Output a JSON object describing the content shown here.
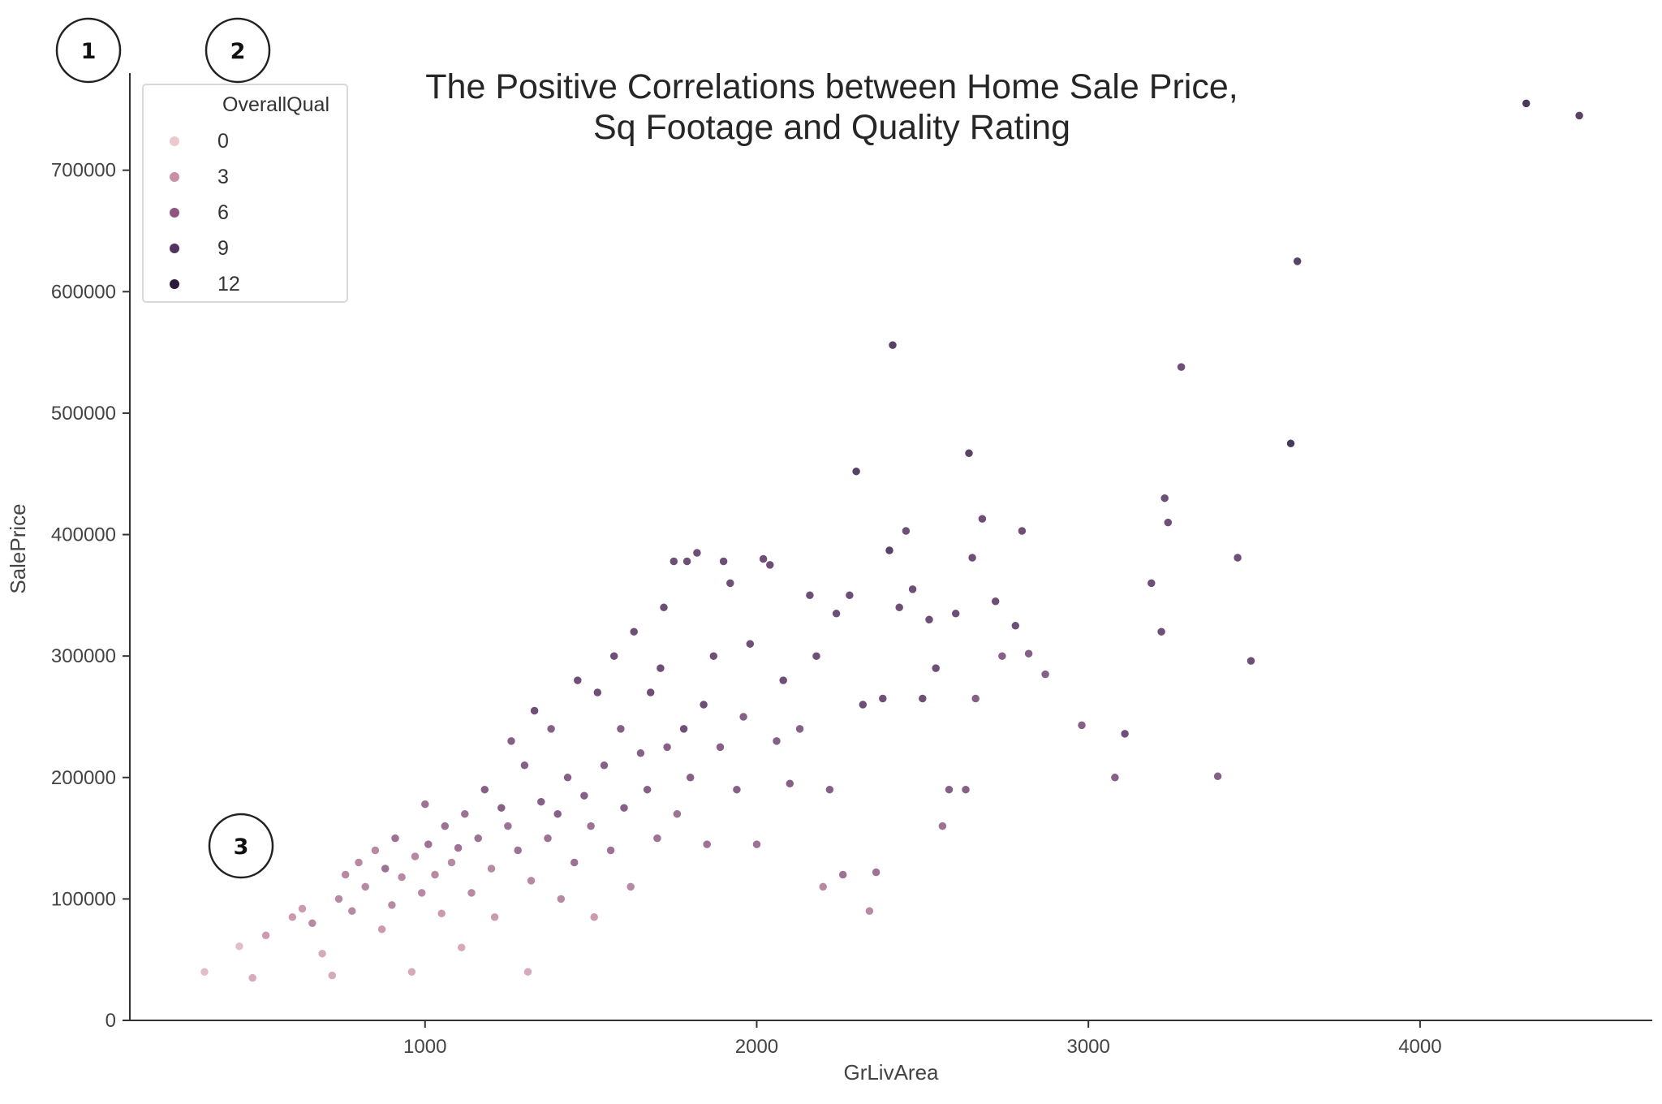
{
  "callouts": [
    "1",
    "2",
    "3"
  ],
  "chart_data": {
    "type": "scatter",
    "title": [
      "The Positive Correlations between Home Sale Price,",
      "Sq Footage and Quality Rating"
    ],
    "xlabel": "GrLivArea",
    "ylabel": "SalePrice",
    "xlim": [
      110,
      4700
    ],
    "ylim": [
      0,
      780000
    ],
    "xticks": [
      1000,
      2000,
      3000,
      4000
    ],
    "yticks": [
      0,
      100000,
      200000,
      300000,
      400000,
      500000,
      600000,
      700000
    ],
    "grid": false,
    "hue": "OverallQual",
    "legend": {
      "title": "OverallQual",
      "placement": "top-left",
      "entries": [
        {
          "label": "0",
          "color": "#ebc9cf"
        },
        {
          "label": "3",
          "color": "#c98fa6"
        },
        {
          "label": "6",
          "color": "#8f5480"
        },
        {
          "label": "9",
          "color": "#54325f"
        },
        {
          "label": "12",
          "color": "#2a1a3b"
        }
      ]
    },
    "colors": {
      "1": "#e8cbd0",
      "2": "#dfb7c2",
      "3": "#d2a1b4",
      "4": "#c68fa6",
      "5": "#b07c98",
      "6": "#946388",
      "7": "#7a4f7a",
      "8": "#5e3c68",
      "9": "#472d58",
      "10": "#33224a"
    },
    "points": [
      [
        335,
        40000,
        2
      ],
      [
        440,
        61000,
        2
      ],
      [
        480,
        35000,
        3
      ],
      [
        520,
        70000,
        4
      ],
      [
        600,
        85000,
        4
      ],
      [
        630,
        92000,
        4
      ],
      [
        660,
        80000,
        5
      ],
      [
        690,
        55000,
        3
      ],
      [
        720,
        37000,
        3
      ],
      [
        740,
        100000,
        5
      ],
      [
        760,
        120000,
        5
      ],
      [
        780,
        90000,
        5
      ],
      [
        800,
        130000,
        5
      ],
      [
        820,
        110000,
        5
      ],
      [
        850,
        140000,
        5
      ],
      [
        870,
        75000,
        4
      ],
      [
        880,
        125000,
        6
      ],
      [
        900,
        95000,
        5
      ],
      [
        910,
        150000,
        6
      ],
      [
        930,
        118000,
        5
      ],
      [
        960,
        40000,
        3
      ],
      [
        970,
        135000,
        5
      ],
      [
        990,
        105000,
        5
      ],
      [
        1000,
        178000,
        6
      ],
      [
        1010,
        145000,
        6
      ],
      [
        1030,
        120000,
        5
      ],
      [
        1050,
        88000,
        4
      ],
      [
        1060,
        160000,
        6
      ],
      [
        1080,
        130000,
        5
      ],
      [
        1100,
        142000,
        6
      ],
      [
        1110,
        60000,
        3
      ],
      [
        1120,
        170000,
        6
      ],
      [
        1140,
        105000,
        5
      ],
      [
        1160,
        150000,
        6
      ],
      [
        1180,
        190000,
        7
      ],
      [
        1200,
        125000,
        5
      ],
      [
        1210,
        85000,
        4
      ],
      [
        1230,
        175000,
        7
      ],
      [
        1250,
        160000,
        6
      ],
      [
        1260,
        230000,
        7
      ],
      [
        1280,
        140000,
        6
      ],
      [
        1300,
        210000,
        7
      ],
      [
        1310,
        40000,
        3
      ],
      [
        1320,
        115000,
        5
      ],
      [
        1330,
        255000,
        8
      ],
      [
        1350,
        180000,
        7
      ],
      [
        1370,
        150000,
        6
      ],
      [
        1380,
        240000,
        7
      ],
      [
        1400,
        170000,
        7
      ],
      [
        1410,
        100000,
        5
      ],
      [
        1430,
        200000,
        7
      ],
      [
        1450,
        130000,
        6
      ],
      [
        1460,
        280000,
        8
      ],
      [
        1480,
        185000,
        7
      ],
      [
        1500,
        160000,
        6
      ],
      [
        1510,
        85000,
        4
      ],
      [
        1520,
        270000,
        8
      ],
      [
        1540,
        210000,
        7
      ],
      [
        1560,
        140000,
        6
      ],
      [
        1570,
        300000,
        8
      ],
      [
        1590,
        240000,
        7
      ],
      [
        1600,
        175000,
        7
      ],
      [
        1620,
        110000,
        5
      ],
      [
        1630,
        320000,
        8
      ],
      [
        1650,
        220000,
        7
      ],
      [
        1670,
        190000,
        7
      ],
      [
        1680,
        270000,
        8
      ],
      [
        1700,
        150000,
        6
      ],
      [
        1710,
        290000,
        8
      ],
      [
        1720,
        340000,
        8
      ],
      [
        1730,
        225000,
        7
      ],
      [
        1750,
        378000,
        8
      ],
      [
        1760,
        170000,
        6
      ],
      [
        1780,
        240000,
        8
      ],
      [
        1790,
        378000,
        8
      ],
      [
        1800,
        200000,
        7
      ],
      [
        1820,
        385000,
        8
      ],
      [
        1840,
        260000,
        8
      ],
      [
        1850,
        145000,
        6
      ],
      [
        1870,
        300000,
        8
      ],
      [
        1890,
        225000,
        7
      ],
      [
        1900,
        378000,
        8
      ],
      [
        1920,
        360000,
        8
      ],
      [
        1940,
        190000,
        7
      ],
      [
        1960,
        250000,
        7
      ],
      [
        1980,
        310000,
        8
      ],
      [
        2000,
        145000,
        6
      ],
      [
        2020,
        380000,
        8
      ],
      [
        2040,
        375000,
        8
      ],
      [
        2060,
        230000,
        7
      ],
      [
        2080,
        280000,
        8
      ],
      [
        2100,
        195000,
        7
      ],
      [
        2130,
        240000,
        7
      ],
      [
        2160,
        350000,
        8
      ],
      [
        2180,
        300000,
        8
      ],
      [
        2200,
        110000,
        5
      ],
      [
        2220,
        190000,
        7
      ],
      [
        2240,
        335000,
        8
      ],
      [
        2260,
        120000,
        6
      ],
      [
        2280,
        350000,
        8
      ],
      [
        2300,
        452000,
        9
      ],
      [
        2320,
        260000,
        8
      ],
      [
        2340,
        90000,
        5
      ],
      [
        2360,
        122000,
        6
      ],
      [
        2380,
        265000,
        8
      ],
      [
        2400,
        387000,
        9
      ],
      [
        2410,
        556000,
        9
      ],
      [
        2430,
        340000,
        8
      ],
      [
        2450,
        403000,
        8
      ],
      [
        2470,
        355000,
        8
      ],
      [
        2500,
        265000,
        8
      ],
      [
        2520,
        330000,
        8
      ],
      [
        2540,
        290000,
        8
      ],
      [
        2560,
        160000,
        6
      ],
      [
        2580,
        190000,
        7
      ],
      [
        2600,
        335000,
        8
      ],
      [
        2630,
        190000,
        7
      ],
      [
        2640,
        467000,
        9
      ],
      [
        2650,
        381000,
        8
      ],
      [
        2660,
        265000,
        7
      ],
      [
        2680,
        413000,
        8
      ],
      [
        2720,
        345000,
        8
      ],
      [
        2740,
        300000,
        7
      ],
      [
        2780,
        325000,
        8
      ],
      [
        2800,
        403000,
        8
      ],
      [
        2820,
        302000,
        7
      ],
      [
        2870,
        285000,
        7
      ],
      [
        2980,
        243000,
        7
      ],
      [
        3080,
        200000,
        7
      ],
      [
        3110,
        236000,
        8
      ],
      [
        3190,
        360000,
        8
      ],
      [
        3220,
        320000,
        8
      ],
      [
        3230,
        430000,
        8
      ],
      [
        3240,
        410000,
        8
      ],
      [
        3280,
        538000,
        8
      ],
      [
        3390,
        201000,
        7
      ],
      [
        3450,
        381000,
        8
      ],
      [
        3490,
        296000,
        8
      ],
      [
        3610,
        475000,
        10
      ],
      [
        3630,
        625000,
        9
      ],
      [
        4320,
        755000,
        10
      ],
      [
        4480,
        745000,
        9
      ]
    ]
  }
}
